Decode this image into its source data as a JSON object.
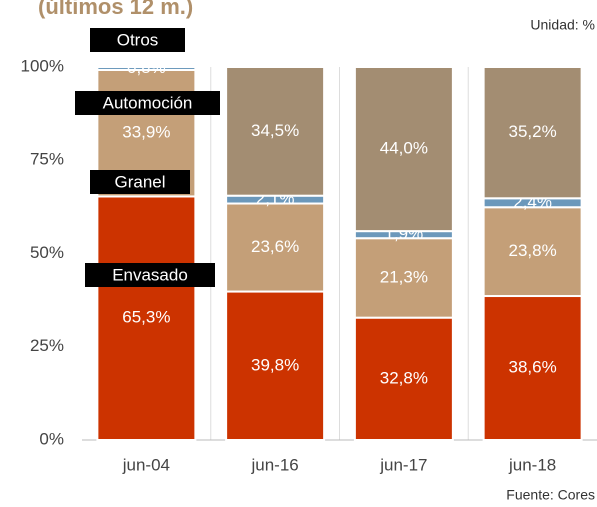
{
  "chart_data": {
    "type": "stacked_bar",
    "title": "(últimos 12 m.)",
    "unit_note": "Unidad: %",
    "source": "Fuente: Cores",
    "categories": [
      "jun-04",
      "jun-16",
      "jun-17",
      "jun-18"
    ],
    "series": [
      {
        "name": "Envasado",
        "color": "#cc3300",
        "values": [
          65.3,
          39.8,
          32.8,
          38.6
        ],
        "value_labels": [
          "65,3%",
          "39,8%",
          "32,8%",
          "38,6%"
        ]
      },
      {
        "name": "Granel",
        "color": "#c49f78",
        "values": [
          33.9,
          23.6,
          21.3,
          23.8
        ],
        "value_labels": [
          "33,9%",
          "23,6%",
          "21,3%",
          "23,8%"
        ]
      },
      {
        "name": "Otros",
        "color": "#6b98bb",
        "values": [
          0.8,
          2.1,
          1.9,
          2.4
        ],
        "value_labels": [
          "0,8%",
          "2,1%",
          "1,9%",
          "2,4%"
        ]
      },
      {
        "name": "Automoción",
        "color": "#a38d72",
        "values": [
          null,
          34.5,
          44.0,
          35.2
        ],
        "value_labels": [
          null,
          "34,5%",
          "44,0%",
          "35,2%"
        ]
      }
    ],
    "ylim": [
      0,
      100
    ],
    "yticks": [
      {
        "value": 0,
        "label": "0%"
      },
      {
        "value": 25,
        "label": "25%"
      },
      {
        "value": 50,
        "label": "50%"
      },
      {
        "value": 75,
        "label": "75%"
      },
      {
        "value": 100,
        "label": "100%"
      }
    ],
    "grid": true
  }
}
